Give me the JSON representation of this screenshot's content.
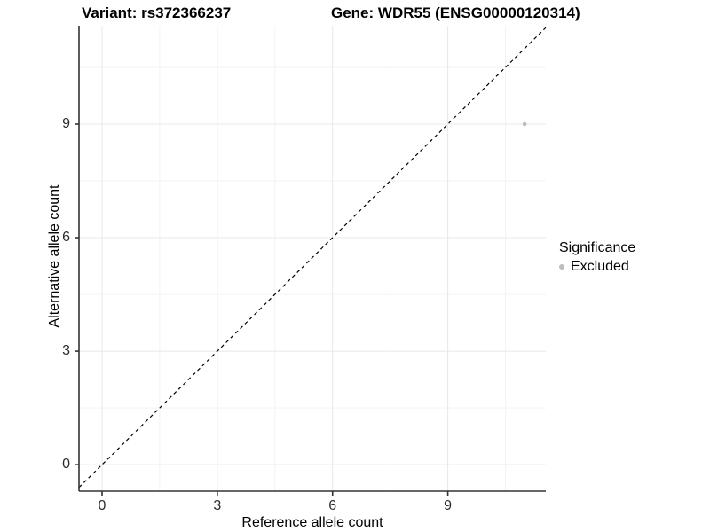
{
  "chart_data": {
    "type": "scatter",
    "title_left": "Variant: rs372366237",
    "title_right": "Gene: WDR55 (ENSG00000120314)",
    "xlabel": "Reference allele count",
    "ylabel": "Alternative allele count",
    "xlim": [
      -0.6,
      11.55
    ],
    "ylim": [
      -0.7,
      11.6
    ],
    "x_ticks": [
      0,
      3,
      6,
      9
    ],
    "y_ticks": [
      0,
      3,
      6,
      9
    ],
    "x_minor_ticks": [
      1.5,
      4.5,
      7.5,
      10.5
    ],
    "y_minor_ticks": [
      1.5,
      4.5,
      7.5,
      10.5
    ],
    "grid": true,
    "series": [
      {
        "name": "Excluded",
        "color": "#bdbdbd",
        "points": [
          {
            "x": 11,
            "y": 9
          }
        ]
      }
    ],
    "reference_line": {
      "type": "identity",
      "slope": 1,
      "intercept": 0,
      "style": "dashed",
      "color": "#000000"
    },
    "legend": {
      "title": "Significance",
      "position": "right",
      "entries": [
        {
          "label": "Excluded",
          "color": "#bdbdbd"
        }
      ]
    }
  },
  "colors": {
    "background": "#ffffff",
    "grid_major": "#e8e8e8",
    "grid_minor": "#f3f3f3",
    "axis_line": "#333333",
    "tick_mark": "#333333",
    "point": "#bdbdbd"
  }
}
